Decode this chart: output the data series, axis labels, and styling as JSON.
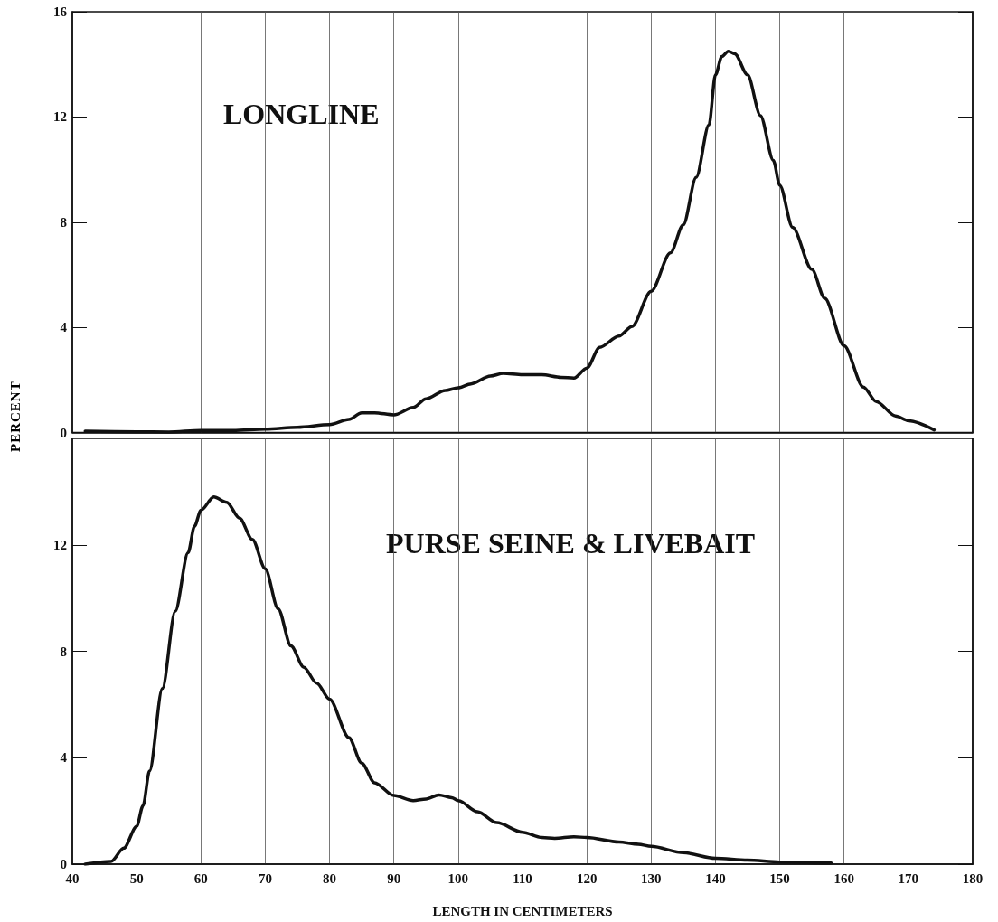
{
  "chart_data": [
    {
      "type": "line",
      "ylabel": "PERCENT",
      "annotations": [
        "LONGLINE"
      ],
      "x": [
        42,
        50,
        55,
        60,
        65,
        70,
        75,
        80,
        83,
        85,
        87,
        90,
        93,
        95,
        98,
        100,
        102,
        105,
        107,
        110,
        113,
        116,
        118,
        120,
        122,
        125,
        127,
        130,
        133,
        135,
        137,
        139,
        140,
        141,
        142,
        143,
        145,
        147,
        149,
        150,
        152,
        155,
        157,
        160,
        163,
        165,
        168,
        170,
        174
      ],
      "values": [
        0.05,
        0.03,
        0.02,
        0.08,
        0.08,
        0.13,
        0.2,
        0.3,
        0.5,
        0.75,
        0.75,
        0.67,
        0.95,
        1.28,
        1.6,
        1.7,
        1.85,
        2.15,
        2.25,
        2.2,
        2.2,
        2.1,
        2.07,
        2.45,
        3.24,
        3.67,
        4.03,
        5.37,
        6.83,
        7.9,
        9.7,
        11.7,
        13.6,
        14.3,
        14.5,
        14.4,
        13.6,
        12.05,
        10.35,
        9.4,
        7.8,
        6.2,
        5.1,
        3.3,
        1.73,
        1.18,
        0.63,
        0.45,
        0.1
      ],
      "color": "#111111",
      "marker": "none",
      "line_style": "solid",
      "grid": "x",
      "tick_labels": "y",
      "xlim": [
        40,
        180
      ],
      "xticks": [
        40,
        50,
        60,
        70,
        80,
        90,
        100,
        110,
        120,
        130,
        140,
        150,
        160,
        170,
        180
      ],
      "ylim": [
        0,
        16
      ],
      "yticks": [
        0,
        4,
        8,
        12,
        16
      ]
    },
    {
      "type": "line",
      "xlabel": "LENGTH IN CENTIMETERS",
      "annotations": [
        "PURSE SEINE & LIVEBAIT"
      ],
      "x": [
        42,
        46,
        48,
        50,
        51,
        52,
        54,
        56,
        58,
        59,
        60,
        62,
        64,
        66,
        68,
        70,
        72,
        74,
        76,
        78,
        80,
        83,
        85,
        87,
        90,
        93,
        95,
        97,
        99,
        100,
        103,
        106,
        110,
        113,
        115,
        118,
        120,
        125,
        128,
        130,
        135,
        140,
        145,
        150,
        158
      ],
      "values": [
        0,
        0.1,
        0.6,
        1.42,
        2.2,
        3.5,
        6.6,
        9.5,
        11.7,
        12.7,
        13.3,
        13.8,
        13.6,
        13.0,
        12.2,
        11.1,
        9.6,
        8.2,
        7.4,
        6.8,
        6.2,
        4.76,
        3.8,
        3.06,
        2.58,
        2.39,
        2.45,
        2.6,
        2.5,
        2.39,
        1.97,
        1.56,
        1.2,
        1.0,
        0.97,
        1.03,
        1.0,
        0.83,
        0.75,
        0.67,
        0.43,
        0.22,
        0.15,
        0.08,
        0.04
      ],
      "color": "#111111",
      "marker": "none",
      "line_style": "solid",
      "grid": "x",
      "xlim": [
        40,
        180
      ],
      "xticks": [
        40,
        50,
        60,
        70,
        80,
        90,
        100,
        110,
        120,
        130,
        140,
        150,
        160,
        170,
        180
      ],
      "ylim": [
        0,
        16
      ],
      "yticks": [
        0,
        4,
        8,
        12
      ]
    }
  ]
}
